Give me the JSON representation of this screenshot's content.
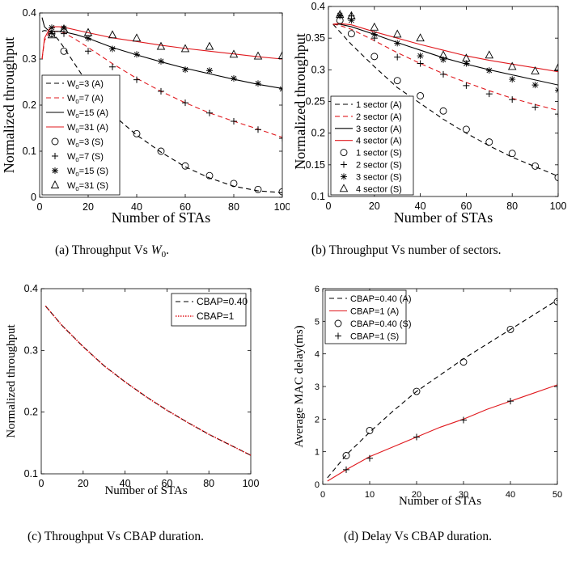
{
  "chart_data": [
    {
      "type": "line",
      "caption_prefix": "(a) Throughput Vs ",
      "caption_math": "W",
      "caption_sub": "0",
      "caption_suffix": ".",
      "xlabel": "Number of STAs",
      "ylabel": "Normalized throughput",
      "xlim": [
        0,
        100
      ],
      "ylim": [
        0,
        0.4
      ],
      "xticks": [
        "0",
        "20",
        "40",
        "60",
        "80",
        "100"
      ],
      "yticks": [
        "0",
        "0.1",
        "0.2",
        "0.3",
        "0.4"
      ],
      "legend_position": "bottom-left",
      "legend": [
        "W0=3 (A)",
        "W0=7 (A)",
        "W0=15 (A)",
        "W0=31 (A)",
        "W0=3 (S)",
        "W0=7 (S)",
        "W0=15 (S)",
        "W0=31 (S)"
      ],
      "series": [
        {
          "name": "W0=3 (A)",
          "style": "black-dashed",
          "x": [
            1,
            2,
            4,
            6,
            8,
            10,
            15,
            20,
            30,
            40,
            50,
            60,
            70,
            80,
            90,
            100
          ],
          "y": [
            0.36,
            0.362,
            0.36,
            0.352,
            0.34,
            0.325,
            0.285,
            0.245,
            0.18,
            0.135,
            0.098,
            0.066,
            0.042,
            0.024,
            0.014,
            0.01
          ]
        },
        {
          "name": "W0=7 (A)",
          "style": "red-dashed",
          "x": [
            1,
            2,
            4,
            6,
            8,
            10,
            15,
            20,
            30,
            40,
            50,
            60,
            70,
            80,
            90,
            100
          ],
          "y": [
            0.3,
            0.34,
            0.358,
            0.36,
            0.36,
            0.357,
            0.342,
            0.325,
            0.29,
            0.258,
            0.23,
            0.205,
            0.183,
            0.165,
            0.148,
            0.13
          ]
        },
        {
          "name": "W0=15 (A)",
          "style": "black-solid",
          "x": [
            1,
            2,
            4,
            6,
            8,
            10,
            15,
            20,
            30,
            40,
            50,
            60,
            70,
            80,
            90,
            100
          ],
          "y": [
            0.39,
            0.37,
            0.36,
            0.36,
            0.36,
            0.359,
            0.353,
            0.345,
            0.325,
            0.309,
            0.294,
            0.28,
            0.268,
            0.256,
            0.245,
            0.236
          ]
        },
        {
          "name": "W0=31 (A)",
          "style": "red-solid",
          "x": [
            1,
            2,
            4,
            6,
            8,
            10,
            20,
            30,
            40,
            50,
            60,
            70,
            80,
            90,
            100
          ],
          "y": [
            0.3,
            0.345,
            0.365,
            0.37,
            0.37,
            0.369,
            0.357,
            0.346,
            0.338,
            0.33,
            0.323,
            0.317,
            0.311,
            0.305,
            0.3
          ]
        },
        {
          "name": "W0=3 (S)",
          "marker": "circle",
          "x": [
            5,
            10,
            20,
            30,
            40,
            50,
            60,
            70,
            80,
            90,
            100
          ],
          "y": [
            0.355,
            0.317,
            0.244,
            0.18,
            0.138,
            0.1,
            0.068,
            0.047,
            0.03,
            0.017,
            0.012
          ]
        },
        {
          "name": "W0=7 (S)",
          "marker": "plus",
          "x": [
            5,
            10,
            20,
            30,
            40,
            50,
            60,
            70,
            80,
            90,
            100
          ],
          "y": [
            0.355,
            0.355,
            0.317,
            0.283,
            0.255,
            0.23,
            0.205,
            0.183,
            0.165,
            0.147,
            0.128
          ]
        },
        {
          "name": "W0=15 (S)",
          "marker": "star",
          "x": [
            5,
            10,
            20,
            30,
            40,
            50,
            60,
            70,
            80,
            90,
            100
          ],
          "y": [
            0.368,
            0.367,
            0.345,
            0.322,
            0.31,
            0.295,
            0.277,
            0.275,
            0.258,
            0.247,
            0.235
          ]
        },
        {
          "name": "W0=31 (S)",
          "marker": "triangle",
          "x": [
            5,
            10,
            20,
            30,
            40,
            50,
            60,
            70,
            80,
            90,
            100
          ],
          "y": [
            0.352,
            0.365,
            0.357,
            0.352,
            0.345,
            0.327,
            0.322,
            0.327,
            0.31,
            0.306,
            0.307
          ]
        }
      ]
    },
    {
      "type": "line",
      "caption": "(b) Throughput Vs number of sectors.",
      "xlabel": "Number of STAs",
      "ylabel": "Normalized throughput",
      "xlim": [
        0,
        100
      ],
      "ylim": [
        0.1,
        0.4
      ],
      "xticks": [
        "0",
        "20",
        "40",
        "60",
        "80",
        "100"
      ],
      "yticks": [
        "0.1",
        "0.15",
        "0.2",
        "0.25",
        "0.3",
        "0.35",
        "0.4"
      ],
      "legend_position": "bottom-left",
      "legend": [
        "1 sector (A)",
        "2 sector (A)",
        "3 sector (A)",
        "4 sector (A)",
        "1 sector (S)",
        "2 sector (S)",
        "3 sector (S)",
        "4 sector (S)"
      ],
      "series": [
        {
          "name": "1 sector (A)",
          "style": "black-dashed",
          "x": [
            2,
            5,
            10,
            20,
            30,
            40,
            50,
            60,
            70,
            80,
            90,
            100
          ],
          "y": [
            0.372,
            0.36,
            0.34,
            0.305,
            0.272,
            0.247,
            0.222,
            0.2,
            0.18,
            0.162,
            0.147,
            0.132
          ]
        },
        {
          "name": "2 sector (A)",
          "style": "red-dashed",
          "x": [
            2,
            5,
            10,
            20,
            30,
            40,
            50,
            60,
            70,
            80,
            90,
            100
          ],
          "y": [
            0.372,
            0.37,
            0.364,
            0.346,
            0.327,
            0.31,
            0.294,
            0.28,
            0.267,
            0.255,
            0.245,
            0.236
          ]
        },
        {
          "name": "3 sector (A)",
          "style": "black-solid",
          "x": [
            2,
            5,
            10,
            20,
            30,
            40,
            50,
            60,
            70,
            80,
            90,
            100
          ],
          "y": [
            0.372,
            0.372,
            0.368,
            0.356,
            0.343,
            0.331,
            0.319,
            0.309,
            0.3,
            0.292,
            0.284,
            0.276
          ]
        },
        {
          "name": "4 sector (A)",
          "style": "red-solid",
          "x": [
            2,
            5,
            10,
            20,
            30,
            40,
            50,
            60,
            70,
            80,
            90,
            100
          ],
          "y": [
            0.372,
            0.373,
            0.371,
            0.36,
            0.35,
            0.34,
            0.331,
            0.322,
            0.315,
            0.309,
            0.303,
            0.297
          ]
        },
        {
          "name": "1 sector (S)",
          "marker": "circle",
          "x": [
            5,
            10,
            20,
            30,
            40,
            50,
            60,
            70,
            80,
            90,
            100
          ],
          "y": [
            0.378,
            0.357,
            0.321,
            0.283,
            0.259,
            0.235,
            0.206,
            0.186,
            0.168,
            0.148,
            0.13
          ]
        },
        {
          "name": "2 sector (S)",
          "marker": "plus",
          "x": [
            5,
            10,
            20,
            30,
            40,
            50,
            60,
            70,
            80,
            90,
            100
          ],
          "y": [
            0.385,
            0.385,
            0.35,
            0.32,
            0.31,
            0.293,
            0.275,
            0.262,
            0.253,
            0.241,
            0.23
          ]
        },
        {
          "name": "3 sector (S)",
          "marker": "star",
          "x": [
            5,
            10,
            20,
            30,
            40,
            50,
            60,
            70,
            80,
            90,
            100
          ],
          "y": [
            0.386,
            0.378,
            0.356,
            0.342,
            0.322,
            0.316,
            0.31,
            0.299,
            0.285,
            0.276,
            0.268
          ]
        },
        {
          "name": "4 sector (S)",
          "marker": "triangle",
          "x": [
            5,
            10,
            20,
            30,
            40,
            50,
            60,
            70,
            80,
            90,
            100
          ],
          "y": [
            0.387,
            0.385,
            0.367,
            0.356,
            0.35,
            0.323,
            0.318,
            0.323,
            0.305,
            0.298,
            0.303
          ]
        }
      ]
    },
    {
      "type": "line",
      "caption": "(c) Throughput Vs CBAP duration.",
      "xlabel": "Number of STAs",
      "ylabel": "Normalized throughput",
      "xlim": [
        0,
        100
      ],
      "ylim": [
        0.1,
        0.4
      ],
      "xticks": [
        "0",
        "20",
        "40",
        "60",
        "80",
        "100"
      ],
      "yticks": [
        "0.1",
        "0.2",
        "0.3",
        "0.4"
      ],
      "legend_position": "top-right",
      "legend": [
        "CBAP=0.40",
        "CBAP=1"
      ],
      "series": [
        {
          "name": "CBAP=0.40",
          "style": "black-dashed",
          "x": [
            2,
            5,
            10,
            20,
            30,
            40,
            50,
            60,
            70,
            80,
            90,
            100
          ],
          "y": [
            0.372,
            0.36,
            0.34,
            0.306,
            0.275,
            0.249,
            0.225,
            0.203,
            0.183,
            0.164,
            0.147,
            0.13
          ]
        },
        {
          "name": "CBAP=1",
          "style": "red-dotted",
          "x": [
            2,
            5,
            10,
            20,
            30,
            40,
            50,
            60,
            70,
            80,
            90,
            100
          ],
          "y": [
            0.372,
            0.36,
            0.34,
            0.306,
            0.275,
            0.249,
            0.225,
            0.203,
            0.183,
            0.164,
            0.147,
            0.13
          ]
        }
      ]
    },
    {
      "type": "line",
      "caption": "(d) Delay Vs CBAP duration.",
      "xlabel": "Number of STAs",
      "ylabel": "Average MAC delay(ms)",
      "xlim": [
        0,
        50
      ],
      "ylim": [
        0,
        6
      ],
      "xticks": [
        "0",
        "10",
        "20",
        "30",
        "40",
        "50"
      ],
      "yticks": [
        "0",
        "1",
        "2",
        "3",
        "4",
        "5",
        "6"
      ],
      "legend_position": "top-left",
      "legend": [
        "CBAP=0.40 (A)",
        "CBAP=1 (A)",
        "CBAP=0.40 (S)",
        "CBAP=1 (S)"
      ],
      "series": [
        {
          "name": "CBAP=0.40 (A)",
          "style": "black-dashed",
          "x": [
            1,
            5,
            10,
            15,
            20,
            25,
            30,
            35,
            40,
            45,
            50
          ],
          "y": [
            0.2,
            0.9,
            1.6,
            2.25,
            2.85,
            3.35,
            3.85,
            4.3,
            4.75,
            5.2,
            5.65
          ]
        },
        {
          "name": "CBAP=1 (A)",
          "style": "red-solid",
          "x": [
            1,
            5,
            10,
            15,
            20,
            25,
            30,
            35,
            40,
            45,
            50
          ],
          "y": [
            0.1,
            0.45,
            0.85,
            1.15,
            1.45,
            1.75,
            2.0,
            2.3,
            2.55,
            2.8,
            3.05
          ]
        },
        {
          "name": "CBAP=0.40 (S)",
          "marker": "circle",
          "x": [
            5,
            10,
            20,
            30,
            40,
            50
          ],
          "y": [
            0.88,
            1.65,
            2.85,
            3.75,
            4.75,
            5.6
          ]
        },
        {
          "name": "CBAP=1 (S)",
          "marker": "plus",
          "x": [
            5,
            10,
            20,
            30,
            40,
            50
          ],
          "y": [
            0.45,
            0.8,
            1.45,
            1.97,
            2.55,
            3.0
          ]
        }
      ]
    }
  ]
}
